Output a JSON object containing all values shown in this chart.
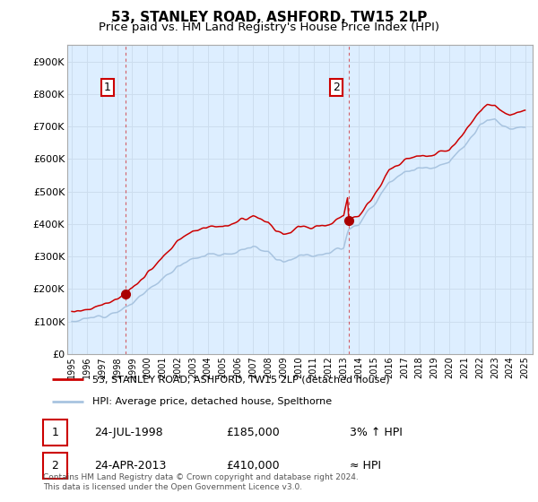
{
  "title": "53, STANLEY ROAD, ASHFORD, TW15 2LP",
  "subtitle": "Price paid vs. HM Land Registry's House Price Index (HPI)",
  "ylim": [
    0,
    950000
  ],
  "yticks": [
    0,
    100000,
    200000,
    300000,
    400000,
    500000,
    600000,
    700000,
    800000,
    900000
  ],
  "ytick_labels": [
    "£0",
    "£100K",
    "£200K",
    "£300K",
    "£400K",
    "£500K",
    "£600K",
    "£700K",
    "£800K",
    "£900K"
  ],
  "sale1_year": 1998.56,
  "sale1_price": 185000,
  "sale1_label": "1",
  "sale2_year": 2013.31,
  "sale2_price": 410000,
  "sale2_label": "2",
  "hpi_color": "#a8c4e0",
  "price_color": "#cc0000",
  "marker_color": "#aa0000",
  "grid_color": "#ccddee",
  "plot_bg_color": "#ddeeff",
  "background_color": "#ffffff",
  "legend_label_red": "53, STANLEY ROAD, ASHFORD, TW15 2LP (detached house)",
  "legend_label_blue": "HPI: Average price, detached house, Spelthorne",
  "table_row1": [
    "1",
    "24-JUL-1998",
    "£185,000",
    "3% ↑ HPI"
  ],
  "table_row2": [
    "2",
    "24-APR-2013",
    "£410,000",
    "≈ HPI"
  ],
  "footnote": "Contains HM Land Registry data © Crown copyright and database right 2024.\nThis data is licensed under the Open Government Licence v3.0.",
  "xlim_start": 1994.7,
  "xlim_end": 2025.5,
  "title_fontsize": 11,
  "subtitle_fontsize": 9.5
}
